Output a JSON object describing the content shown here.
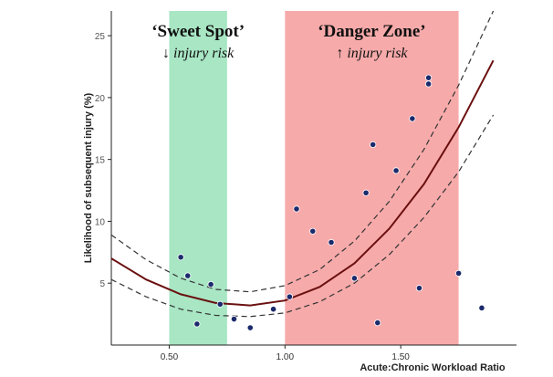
{
  "chart_data": {
    "type": "scatter",
    "xlabel": "Acute:Chronic Workload Ratio",
    "ylabel": "Likelihood of subsequent injury (%)",
    "x_ticks": [
      0.5,
      1.0,
      1.5
    ],
    "x_tick_labels": [
      "0.50",
      "1.00",
      "1.50"
    ],
    "y_ticks": [
      5,
      10,
      15,
      20,
      25
    ],
    "y_tick_labels": [
      "5",
      "10",
      "15",
      "20",
      "25"
    ],
    "xlim": [
      0.25,
      2.0
    ],
    "ylim": [
      0,
      27
    ],
    "zones": [
      {
        "name": "sweet_spot",
        "label": "‘Sweet Spot’",
        "sublabel": "injury risk",
        "arrow": "↓",
        "x_range": [
          0.5,
          0.75
        ],
        "color": "#a8e6c4"
      },
      {
        "name": "danger_zone",
        "label": "‘Danger Zone’",
        "sublabel": "injury risk",
        "arrow": "↑",
        "x_range": [
          1.0,
          1.75
        ],
        "color": "#f7aaaa"
      }
    ],
    "fit_curve": {
      "points": [
        {
          "x": 0.25,
          "y": 7.0
        },
        {
          "x": 0.4,
          "y": 5.3
        },
        {
          "x": 0.55,
          "y": 4.1
        },
        {
          "x": 0.7,
          "y": 3.4
        },
        {
          "x": 0.85,
          "y": 3.2
        },
        {
          "x": 1.0,
          "y": 3.6
        },
        {
          "x": 1.15,
          "y": 4.7
        },
        {
          "x": 1.3,
          "y": 6.6
        },
        {
          "x": 1.45,
          "y": 9.4
        },
        {
          "x": 1.6,
          "y": 13.0
        },
        {
          "x": 1.75,
          "y": 17.6
        },
        {
          "x": 1.9,
          "y": 23.0
        }
      ],
      "ci_low": [
        {
          "x": 0.25,
          "y": 5.3
        },
        {
          "x": 0.4,
          "y": 3.9
        },
        {
          "x": 0.55,
          "y": 2.9
        },
        {
          "x": 0.7,
          "y": 2.4
        },
        {
          "x": 0.85,
          "y": 2.3
        },
        {
          "x": 1.0,
          "y": 2.6
        },
        {
          "x": 1.15,
          "y": 3.5
        },
        {
          "x": 1.3,
          "y": 5.0
        },
        {
          "x": 1.45,
          "y": 7.3
        },
        {
          "x": 1.6,
          "y": 10.3
        },
        {
          "x": 1.75,
          "y": 14.0
        },
        {
          "x": 1.9,
          "y": 18.6
        }
      ],
      "ci_high": [
        {
          "x": 0.25,
          "y": 8.9
        },
        {
          "x": 0.4,
          "y": 6.9
        },
        {
          "x": 0.55,
          "y": 5.4
        },
        {
          "x": 0.7,
          "y": 4.5
        },
        {
          "x": 0.85,
          "y": 4.3
        },
        {
          "x": 1.0,
          "y": 4.8
        },
        {
          "x": 1.15,
          "y": 6.1
        },
        {
          "x": 1.3,
          "y": 8.4
        },
        {
          "x": 1.45,
          "y": 11.6
        },
        {
          "x": 1.6,
          "y": 15.8
        },
        {
          "x": 1.75,
          "y": 21.0
        },
        {
          "x": 1.9,
          "y": 27.0
        }
      ]
    },
    "points": [
      {
        "x": 0.55,
        "y": 7.1
      },
      {
        "x": 0.58,
        "y": 5.6
      },
      {
        "x": 0.62,
        "y": 1.7
      },
      {
        "x": 0.68,
        "y": 4.9
      },
      {
        "x": 0.72,
        "y": 3.3
      },
      {
        "x": 0.78,
        "y": 2.1
      },
      {
        "x": 0.85,
        "y": 1.4
      },
      {
        "x": 0.95,
        "y": 2.9
      },
      {
        "x": 1.02,
        "y": 3.9
      },
      {
        "x": 1.05,
        "y": 11.0
      },
      {
        "x": 1.12,
        "y": 9.2
      },
      {
        "x": 1.2,
        "y": 8.3
      },
      {
        "x": 1.3,
        "y": 5.4
      },
      {
        "x": 1.35,
        "y": 12.3
      },
      {
        "x": 1.38,
        "y": 16.2
      },
      {
        "x": 1.4,
        "y": 1.8
      },
      {
        "x": 1.48,
        "y": 14.1
      },
      {
        "x": 1.55,
        "y": 18.3
      },
      {
        "x": 1.58,
        "y": 4.6
      },
      {
        "x": 1.62,
        "y": 21.6
      },
      {
        "x": 1.62,
        "y": 21.1
      },
      {
        "x": 1.75,
        "y": 5.8
      },
      {
        "x": 1.85,
        "y": 3.0
      }
    ],
    "grid": false,
    "legend": "none"
  }
}
